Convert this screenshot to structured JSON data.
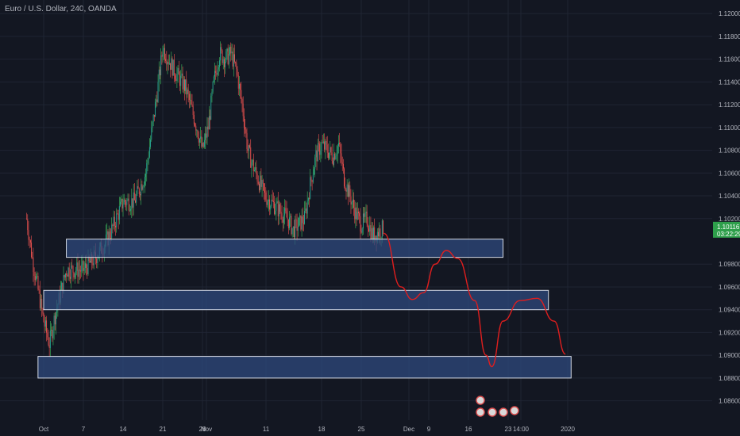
{
  "header": {
    "symbol_title": "Euro / U.S. Dollar, 240, OANDA"
  },
  "colors": {
    "background": "#131722",
    "grid": "#1f2433",
    "axis_text": "#b2b5be",
    "up": "#26a69a",
    "up_wick": "#3fbf5f",
    "down": "#ef5350",
    "zone_fill": "#2f4a7d",
    "zone_border": "#d6dbe6",
    "projection": "#e01e1e",
    "price_label": "#2e9f4b"
  },
  "chart_data": {
    "type": "candlestick",
    "title": "",
    "y_axis": {
      "min": 1.085,
      "max": 1.1205,
      "ticks": [
        "1.12000",
        "1.11800",
        "1.11600",
        "1.11400",
        "1.11200",
        "1.11000",
        "1.10800",
        "1.10600",
        "1.10400",
        "1.10200",
        "1.09800",
        "1.09600",
        "1.09400",
        "1.09200",
        "1.09000",
        "1.08800",
        "1.08600"
      ]
    },
    "x_axis": {
      "ticks": [
        "Oct",
        "7",
        "14",
        "21",
        "28",
        "Nov",
        "11",
        "18",
        "25",
        "Dec",
        "9",
        "16",
        "23",
        "14:00",
        "2020"
      ]
    },
    "current_price": {
      "price": "1.10116",
      "countdown": "03:22:29",
      "value": 1.10116
    },
    "price_path": [
      [
        "Sep 27",
        1.102
      ],
      [
        "Sep 28",
        1.0985
      ],
      [
        "Sep 30",
        1.093
      ],
      [
        "Oct 1",
        1.091
      ],
      [
        "Oct 2",
        1.0935
      ],
      [
        "Oct 3",
        1.0955
      ],
      [
        "Oct 4",
        1.0975
      ],
      [
        "Oct 7",
        1.0975
      ],
      [
        "Oct 9",
        1.0985
      ],
      [
        "Oct 11",
        1.1
      ],
      [
        "Oct 12",
        1.101
      ],
      [
        "Oct 14",
        1.1035
      ],
      [
        "Oct 16",
        1.1035
      ],
      [
        "Oct 18",
        1.106
      ],
      [
        "Oct 20",
        1.113
      ],
      [
        "Oct 21",
        1.117
      ],
      [
        "Oct 23",
        1.115
      ],
      [
        "Oct 25",
        1.1135
      ],
      [
        "Oct 27",
        1.11
      ],
      [
        "Oct 28",
        1.108
      ],
      [
        "Oct 29",
        1.11
      ],
      [
        "Oct 30",
        1.114
      ],
      [
        "Oct 31",
        1.1165
      ],
      [
        "Nov 1",
        1.116
      ],
      [
        "Nov 2",
        1.1165
      ],
      [
        "Nov 3",
        1.115
      ],
      [
        "Nov 4",
        1.112
      ],
      [
        "Nov 5",
        1.108
      ],
      [
        "Nov 6",
        1.1065
      ],
      [
        "Nov 8",
        1.104
      ],
      [
        "Nov 10",
        1.103
      ],
      [
        "Nov 12",
        1.102
      ],
      [
        "Nov 13",
        1.101
      ],
      [
        "Nov 15",
        1.102
      ],
      [
        "Nov 16",
        1.105
      ],
      [
        "Nov 17",
        1.1075
      ],
      [
        "Nov 18",
        1.1085
      ],
      [
        "Nov 20",
        1.1075
      ],
      [
        "Nov 21",
        1.1085
      ],
      [
        "Nov 22",
        1.1055
      ],
      [
        "Nov 24",
        1.1025
      ],
      [
        "Nov 25",
        1.1015
      ],
      [
        "Nov 26",
        1.102
      ],
      [
        "Nov 27",
        1.1005
      ],
      [
        "Nov 29",
        1.1012
      ]
    ],
    "zones": [
      {
        "from": "Oct 4",
        "to": "Dec 20",
        "high": 1.1002,
        "low": 1.0986
      },
      {
        "from": "Sep 30",
        "to": "Dec 28",
        "high": 1.0957,
        "low": 1.094
      },
      {
        "from": "Sep 29",
        "to": "Jan 1",
        "high": 1.0899,
        "low": 1.088
      }
    ],
    "projection": [
      [
        "Nov 29",
        1.1007
      ],
      [
        "Dec 2",
        1.096
      ],
      [
        "Dec 4",
        1.0949
      ],
      [
        "Dec 6",
        1.0955
      ],
      [
        "Dec 8",
        1.098
      ],
      [
        "Dec 10",
        1.0992
      ],
      [
        "Dec 12",
        1.0985
      ],
      [
        "Dec 15",
        1.0948
      ],
      [
        "Dec 17",
        1.09
      ],
      [
        "Dec 18",
        1.089
      ],
      [
        "Dec 20",
        1.093
      ],
      [
        "Dec 23",
        1.0948
      ],
      [
        "Dec 26",
        1.095
      ],
      [
        "Dec 29",
        1.093
      ],
      [
        "Dec 31",
        1.0901
      ]
    ]
  }
}
